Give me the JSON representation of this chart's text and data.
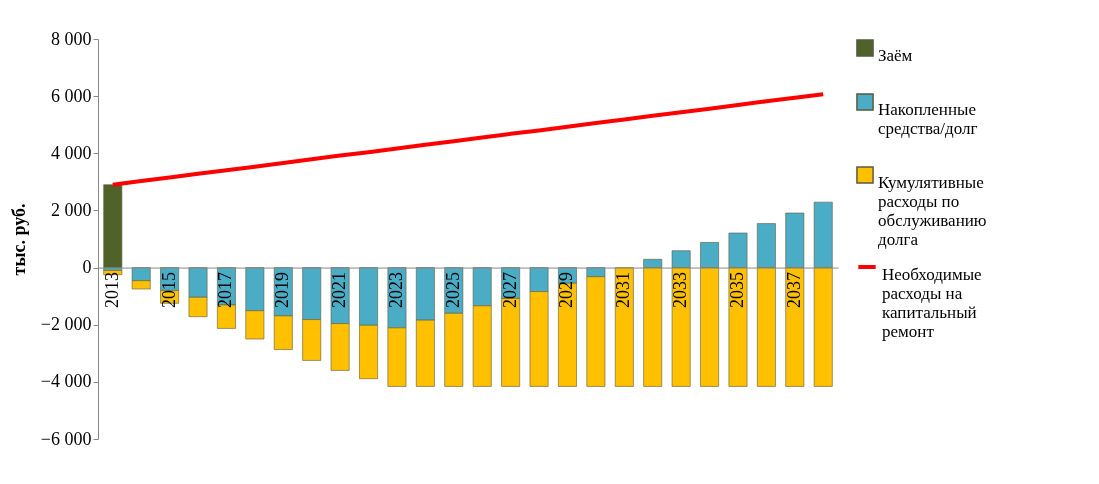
{
  "chart_data": {
    "type": "bar",
    "stacked": true,
    "ylabel": "тыс. руб.",
    "categories": [
      "2013",
      null,
      "2015",
      null,
      "2017",
      null,
      "2019",
      null,
      "2021",
      null,
      "2023",
      null,
      "2025",
      null,
      "2027",
      null,
      "2029",
      null,
      "2031",
      null,
      "2033",
      null,
      "2035",
      null,
      "2037",
      null
    ],
    "series": [
      {
        "name": "Заём",
        "color": "#4f6228",
        "values": [
          2900,
          null,
          null,
          null,
          null,
          null,
          null,
          null,
          null,
          null,
          null,
          null,
          null,
          null,
          null,
          null,
          null,
          null,
          null,
          null,
          null,
          null,
          null,
          null,
          null,
          null
        ]
      },
      {
        "name": "Накопленные средства/долг",
        "color": "#4bacc6",
        "values": [
          -100,
          -460,
          -800,
          -1040,
          -1310,
          -1510,
          -1690,
          -1820,
          -1960,
          -2020,
          -2110,
          -1840,
          -1600,
          -1340,
          -1080,
          -840,
          -550,
          -320,
          null,
          290,
          590,
          880,
          1210,
          1540,
          1910,
          2290
        ]
      },
      {
        "name": "Кумулятивные расходы по обслуживанию долга",
        "color": "#ffc000",
        "values": [
          -150,
          -290,
          -450,
          -680,
          -820,
          -990,
          -1180,
          -1430,
          -1640,
          -1870,
          -2050,
          -2320,
          -2560,
          -2820,
          -3080,
          -3320,
          -3610,
          -3840,
          -4160,
          -4160,
          -4160,
          -4160,
          -4160,
          -4160,
          -4160,
          -4160
        ]
      },
      {
        "name": "Необходимые расходы на капитальный ремонт",
        "type": "line",
        "color": "#ff0000",
        "values": [
          2900,
          3030,
          3150,
          3280,
          3410,
          3530,
          3660,
          3790,
          3920,
          4040,
          4170,
          4300,
          4420,
          4550,
          4680,
          4800,
          4930,
          5060,
          5180,
          5310,
          5440,
          5560,
          5690,
          5820,
          5940,
          6070
        ]
      }
    ],
    "ylim": [
      -6000,
      8000
    ],
    "yticks": [
      -6000,
      -4000,
      -2000,
      0,
      2000,
      4000,
      6000,
      8000
    ],
    "legend": "right"
  }
}
